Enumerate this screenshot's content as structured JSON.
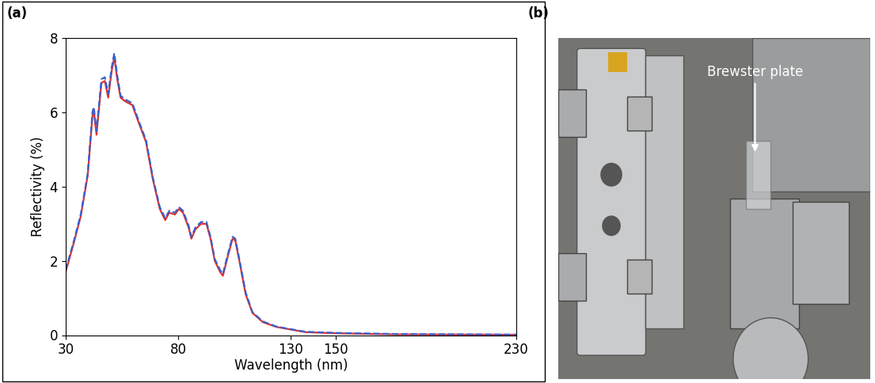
{
  "chart_data": {
    "type": "line",
    "panel_label": "(a)",
    "x_label": "Wavelength (nm)",
    "y_label": "Reflectivity (%)",
    "x": [
      30,
      33.7,
      36.7,
      39.8,
      41.9,
      42.5,
      43.7,
      45.9,
      47.4,
      48.9,
      50.4,
      51.6,
      52.9,
      54.4,
      56.5,
      59.6,
      62.6,
      65.7,
      68.7,
      71.8,
      74.2,
      76.0,
      78.5,
      80.3,
      82.1,
      84.6,
      85.8,
      87.6,
      90.1,
      92.5,
      94.3,
      96.2,
      98.6,
      99.8,
      102.3,
      104.1,
      105.3,
      107.1,
      109.9,
      112.9,
      117.5,
      123.6,
      130,
      136.5,
      150,
      176.7,
      230
    ],
    "series": [
      {
        "color": "#e0302c",
        "line_style": "solid",
        "values": [
          1.7,
          2.5,
          3.2,
          4.3,
          5.9,
          6.05,
          5.4,
          6.8,
          6.85,
          6.4,
          7.1,
          7.5,
          6.9,
          6.4,
          6.3,
          6.2,
          5.7,
          5.2,
          4.2,
          3.4,
          3.1,
          3.3,
          3.25,
          3.4,
          3.3,
          2.9,
          2.6,
          2.85,
          3.0,
          3.0,
          2.6,
          2.0,
          1.7,
          1.6,
          2.2,
          2.6,
          2.55,
          2.0,
          1.1,
          0.6,
          0.35,
          0.22,
          0.15,
          0.08,
          0.05,
          0.02,
          0.01
        ]
      },
      {
        "color": "#3a5fcd",
        "line_style": "dashed",
        "values": [
          1.75,
          2.55,
          3.25,
          4.35,
          6.0,
          6.15,
          5.5,
          6.9,
          6.95,
          6.5,
          7.2,
          7.6,
          7.0,
          6.45,
          6.35,
          6.25,
          5.75,
          5.25,
          4.25,
          3.45,
          3.15,
          3.35,
          3.3,
          3.45,
          3.35,
          2.95,
          2.65,
          2.9,
          3.05,
          3.05,
          2.65,
          2.05,
          1.75,
          1.65,
          2.25,
          2.65,
          2.6,
          2.05,
          1.15,
          0.62,
          0.37,
          0.23,
          0.16,
          0.09,
          0.06,
          0.03,
          0.015
        ]
      }
    ],
    "xlim": [
      30,
      230
    ],
    "xticks": [
      30,
      80,
      130,
      150,
      230
    ],
    "ylim": [
      0,
      8
    ],
    "yticks": [
      0,
      2,
      4,
      6,
      8
    ],
    "grid": false
  },
  "photo": {
    "panel_label": "(b)",
    "annotation": "Brewster plate"
  }
}
